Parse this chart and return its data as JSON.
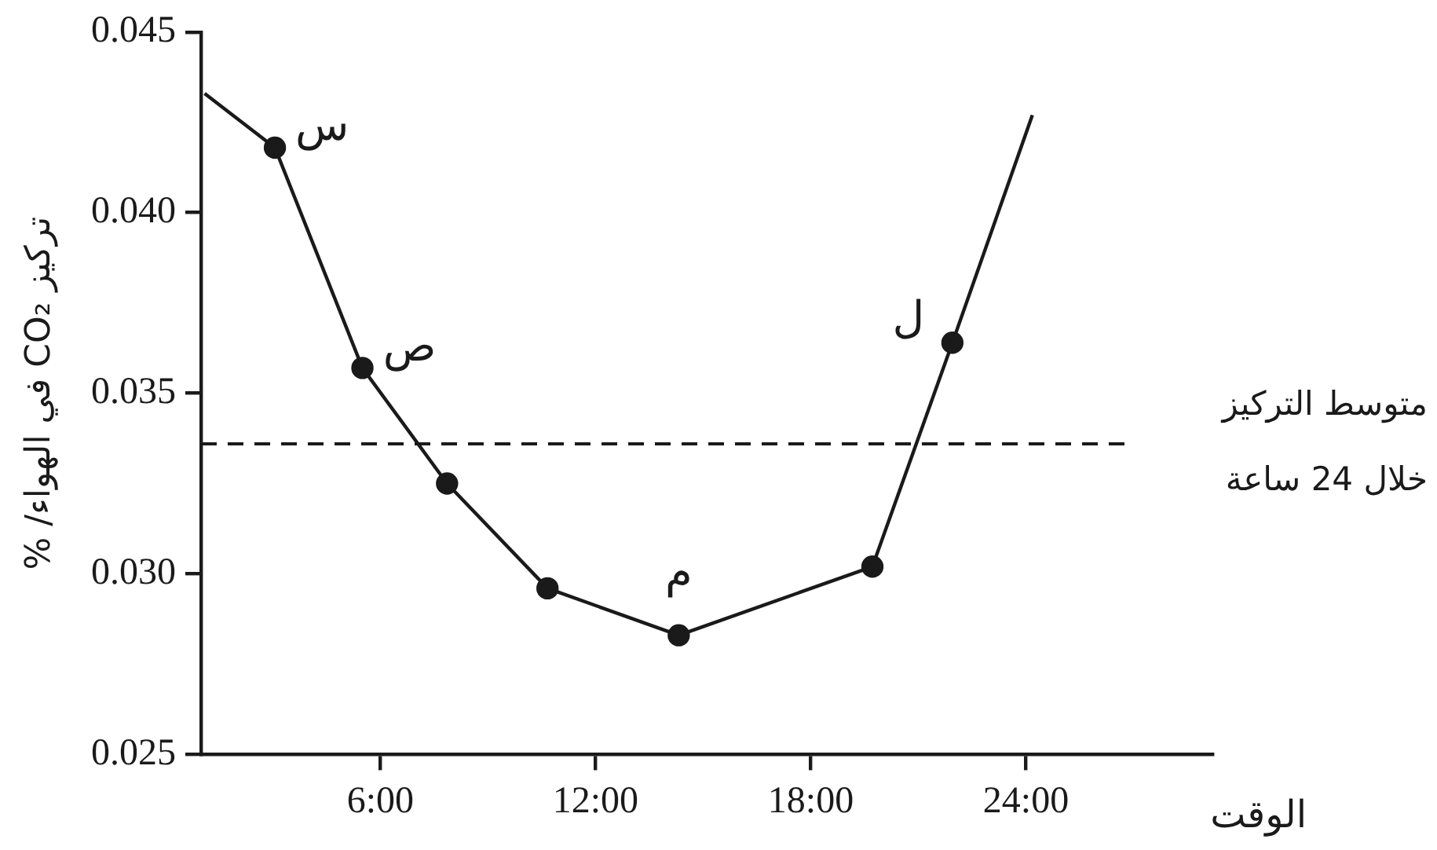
{
  "chart_data": {
    "type": "line",
    "xlabel": "الوقت",
    "ylabel": "تركيز CO₂ في الهواء/ %",
    "xlim": [
      1,
      29.2
    ],
    "xticks": [
      {
        "value": 6,
        "label": "6:00"
      },
      {
        "value": 12,
        "label": "12:00"
      },
      {
        "value": 18,
        "label": "18:00"
      },
      {
        "value": 24,
        "label": "24:00"
      }
    ],
    "ylim": [
      0.025,
      0.045
    ],
    "yticks": [
      0.025,
      {
        "value": 0.03,
        "label": "0.030"
      },
      0.035,
      {
        "value": 0.04,
        "label": "0.040"
      },
      0.045
    ],
    "series": [
      {
        "color": "#1a1a1a",
        "marker": "none",
        "x": [
          1.1,
          3.06,
          5.5,
          7.86,
          10.66,
          14.32,
          19.72,
          21.95,
          24.18
        ],
        "values": [
          0.0433,
          0.0418,
          0.0357,
          0.0325,
          0.0296,
          0.0283,
          0.0302,
          0.0364,
          0.0427
        ]
      },
      {
        "type": "scatter",
        "color": "#1a1a1a",
        "marker": "circle",
        "x": [
          3.06,
          5.5,
          7.86,
          10.66,
          14.32,
          19.72,
          21.95
        ],
        "values": [
          0.0418,
          0.0357,
          0.0325,
          0.0296,
          0.0283,
          0.0302,
          0.0364
        ]
      }
    ],
    "ref_lines": [
      {
        "axis": "y",
        "value": 0.0336,
        "label": "متوسط التركيز\nخلال 24 ساعة",
        "color": "#1a1a1a",
        "line_style": "dashed"
      }
    ],
    "annotations": [
      {
        "text": "س",
        "x": 3.06,
        "y": 0.0418
      },
      {
        "text": "ص",
        "x": 5.5,
        "y": 0.0357
      },
      {
        "text": "م",
        "x": 14.32,
        "y": 0.0283
      },
      {
        "text": "ل",
        "x": 21.95,
        "y": 0.0364
      }
    ]
  }
}
